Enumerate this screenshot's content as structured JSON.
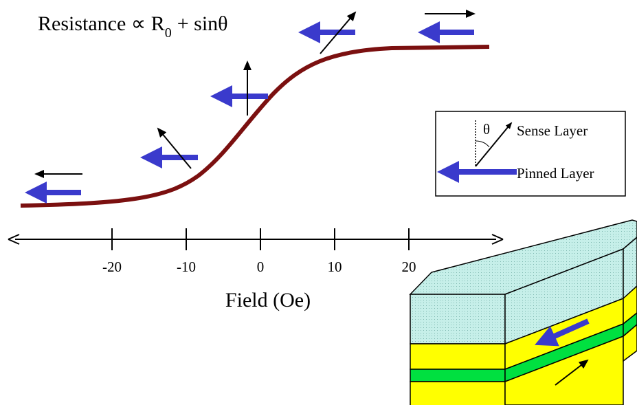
{
  "formula": {
    "main": "Resistance ∝ R",
    "subscript": "0",
    "rest": "+ sinθ"
  },
  "axis": {
    "label": "Field (Oe)",
    "ticks": [
      -20,
      -10,
      0,
      10,
      20
    ]
  },
  "legend": {
    "angle": "θ",
    "sense": "Sense Layer",
    "pinned": "Pinned Layer"
  }
}
